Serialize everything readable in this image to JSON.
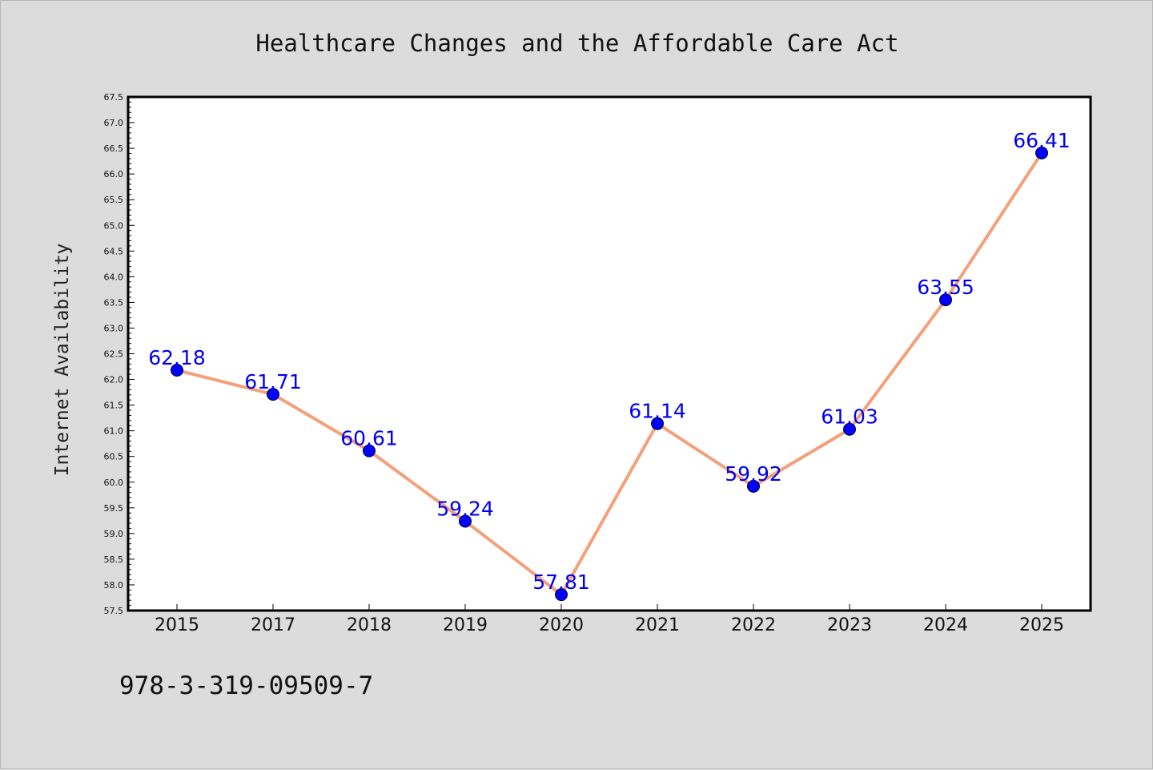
{
  "chart_data": {
    "type": "line",
    "title": "Healthcare Changes and the Affordable Care Act",
    "xlabel": "",
    "ylabel": "Internet Availability",
    "categories": [
      "2015",
      "2017",
      "2018",
      "2019",
      "2020",
      "2021",
      "2022",
      "2023",
      "2024",
      "2025"
    ],
    "series": [
      {
        "values": [
          62.18,
          61.71,
          60.61,
          59.24,
          57.81,
          61.14,
          59.92,
          61.03,
          63.55,
          66.41
        ],
        "data_labels": [
          "62.18",
          "61.71",
          "60.61",
          "59.24",
          "57.81",
          "61.14",
          "59.92",
          "61.03",
          "63.55",
          "66.41"
        ]
      }
    ],
    "ylim": [
      57.5,
      67.5
    ],
    "ytick_labels": [
      "57.5",
      "58.0",
      "58.5",
      "59.0",
      "59.5",
      "60.0",
      "60.5",
      "61.0",
      "61.5",
      "62.0",
      "62.5",
      "63.0",
      "63.5",
      "64.0",
      "64.5",
      "65.0",
      "65.5",
      "66.0",
      "66.5",
      "67.0",
      "67.5"
    ],
    "grid": false,
    "legend": "none",
    "colors": {
      "line": "#f4a07a",
      "marker": "#0000ff",
      "data_label": "#0000ee",
      "plot_background": "#ffffff",
      "figure_background": "#dcdcdc"
    }
  },
  "footer_text": "978-3-319-09509-7"
}
